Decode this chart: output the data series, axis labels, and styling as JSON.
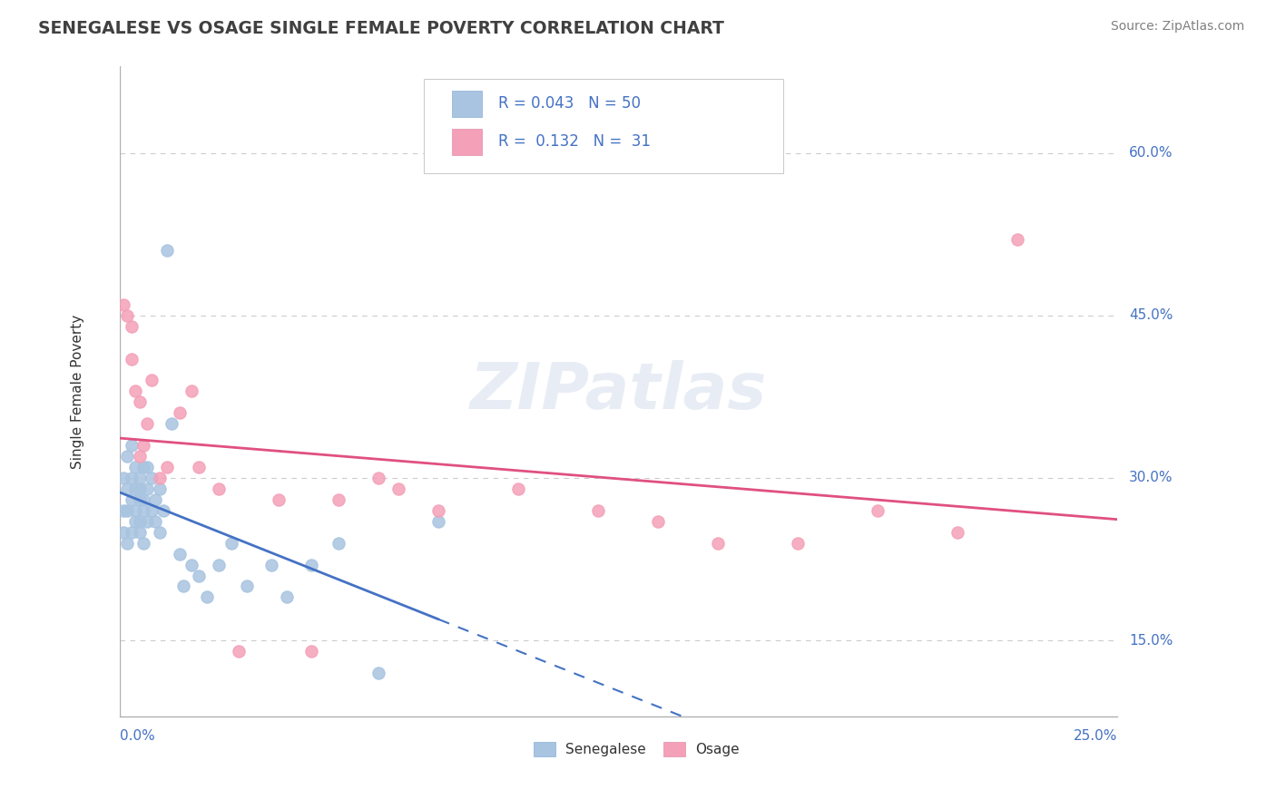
{
  "title": "SENEGALESE VS OSAGE SINGLE FEMALE POVERTY CORRELATION CHART",
  "source": "Source: ZipAtlas.com",
  "ylabel": "Single Female Poverty",
  "yticks": [
    "15.0%",
    "30.0%",
    "45.0%",
    "60.0%"
  ],
  "ytick_vals": [
    0.15,
    0.3,
    0.45,
    0.6
  ],
  "xlim": [
    0.0,
    0.25
  ],
  "ylim": [
    0.08,
    0.68
  ],
  "senegalese_color": "#a8c4e0",
  "osage_color": "#f4a0b8",
  "trend_senegalese_color": "#4472c4",
  "trend_osage_color": "#e05080",
  "watermark": "ZIPatlas",
  "senegalese_x": [
    0.001,
    0.001,
    0.001,
    0.002,
    0.002,
    0.002,
    0.002,
    0.003,
    0.003,
    0.003,
    0.003,
    0.004,
    0.004,
    0.004,
    0.004,
    0.005,
    0.005,
    0.005,
    0.005,
    0.005,
    0.006,
    0.006,
    0.006,
    0.006,
    0.007,
    0.007,
    0.007,
    0.008,
    0.008,
    0.009,
    0.009,
    0.01,
    0.01,
    0.011,
    0.012,
    0.013,
    0.015,
    0.016,
    0.018,
    0.02,
    0.022,
    0.025,
    0.028,
    0.032,
    0.038,
    0.042,
    0.048,
    0.055,
    0.065,
    0.08
  ],
  "senegalese_y": [
    0.25,
    0.27,
    0.3,
    0.27,
    0.29,
    0.32,
    0.24,
    0.28,
    0.3,
    0.25,
    0.33,
    0.27,
    0.29,
    0.26,
    0.31,
    0.28,
    0.25,
    0.3,
    0.26,
    0.29,
    0.27,
    0.31,
    0.28,
    0.24,
    0.29,
    0.26,
    0.31,
    0.27,
    0.3,
    0.26,
    0.28,
    0.25,
    0.29,
    0.27,
    0.51,
    0.35,
    0.23,
    0.2,
    0.22,
    0.21,
    0.19,
    0.22,
    0.24,
    0.2,
    0.22,
    0.19,
    0.22,
    0.24,
    0.12,
    0.26
  ],
  "osage_x": [
    0.001,
    0.002,
    0.003,
    0.003,
    0.004,
    0.005,
    0.005,
    0.006,
    0.007,
    0.008,
    0.01,
    0.012,
    0.015,
    0.018,
    0.02,
    0.025,
    0.03,
    0.04,
    0.048,
    0.055,
    0.065,
    0.07,
    0.08,
    0.1,
    0.12,
    0.135,
    0.15,
    0.17,
    0.19,
    0.21,
    0.225
  ],
  "osage_y": [
    0.46,
    0.45,
    0.44,
    0.41,
    0.38,
    0.37,
    0.32,
    0.33,
    0.35,
    0.39,
    0.3,
    0.31,
    0.36,
    0.38,
    0.31,
    0.29,
    0.14,
    0.28,
    0.14,
    0.28,
    0.3,
    0.29,
    0.27,
    0.29,
    0.27,
    0.26,
    0.24,
    0.24,
    0.27,
    0.25,
    0.52
  ]
}
